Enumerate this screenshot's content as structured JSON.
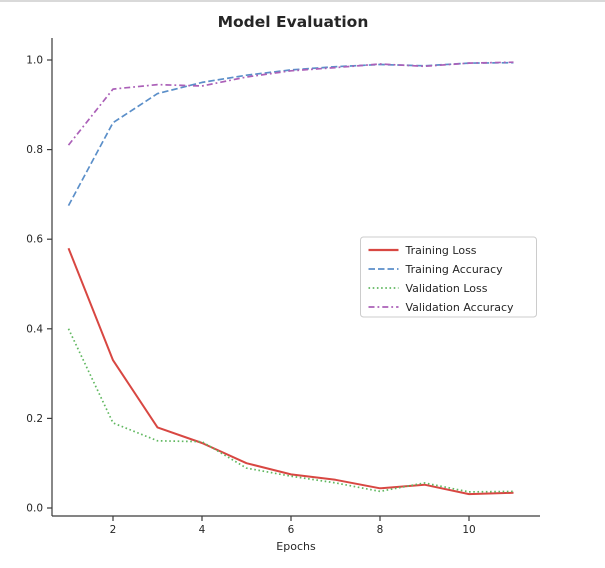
{
  "page": {
    "background": "#ffffff",
    "top_border_color": "#d9d9d9"
  },
  "chart_data": {
    "type": "line",
    "title": "Model Evaluation",
    "xlabel": "Epochs",
    "ylabel": "",
    "x": [
      1,
      2,
      3,
      4,
      5,
      6,
      7,
      8,
      9,
      10,
      11
    ],
    "xticks": [
      2,
      4,
      6,
      8,
      10
    ],
    "yticks": [
      "0.0",
      "0.2",
      "0.4",
      "0.6",
      "0.8",
      "1.0"
    ],
    "xlim": [
      0.6,
      11.6
    ],
    "ylim": [
      -0.018,
      1.049
    ],
    "grid": false,
    "legend_position": "center-right",
    "axis_color": "#3a3a3a",
    "text_color": "#262626",
    "legend_border_color": "#cccccc",
    "series": [
      {
        "name": "Training Loss",
        "color": "#d84742",
        "style": "solid",
        "values": [
          0.58,
          0.33,
          0.18,
          0.145,
          0.1,
          0.075,
          0.063,
          0.044,
          0.052,
          0.031,
          0.034
        ]
      },
      {
        "name": "Training Accuracy",
        "color": "#5b8fc9",
        "style": "dashed",
        "values": [
          0.675,
          0.86,
          0.925,
          0.95,
          0.966,
          0.978,
          0.985,
          0.99,
          0.987,
          0.993,
          0.994
        ]
      },
      {
        "name": "Validation Loss",
        "color": "#61b861",
        "style": "dotted",
        "values": [
          0.4,
          0.19,
          0.15,
          0.148,
          0.089,
          0.071,
          0.056,
          0.037,
          0.056,
          0.036,
          0.037
        ]
      },
      {
        "name": "Validation Accuracy",
        "color": "#ab60b8",
        "style": "dashdot",
        "values": [
          0.81,
          0.935,
          0.945,
          0.942,
          0.962,
          0.976,
          0.983,
          0.991,
          0.986,
          0.993,
          0.995
        ]
      }
    ]
  }
}
